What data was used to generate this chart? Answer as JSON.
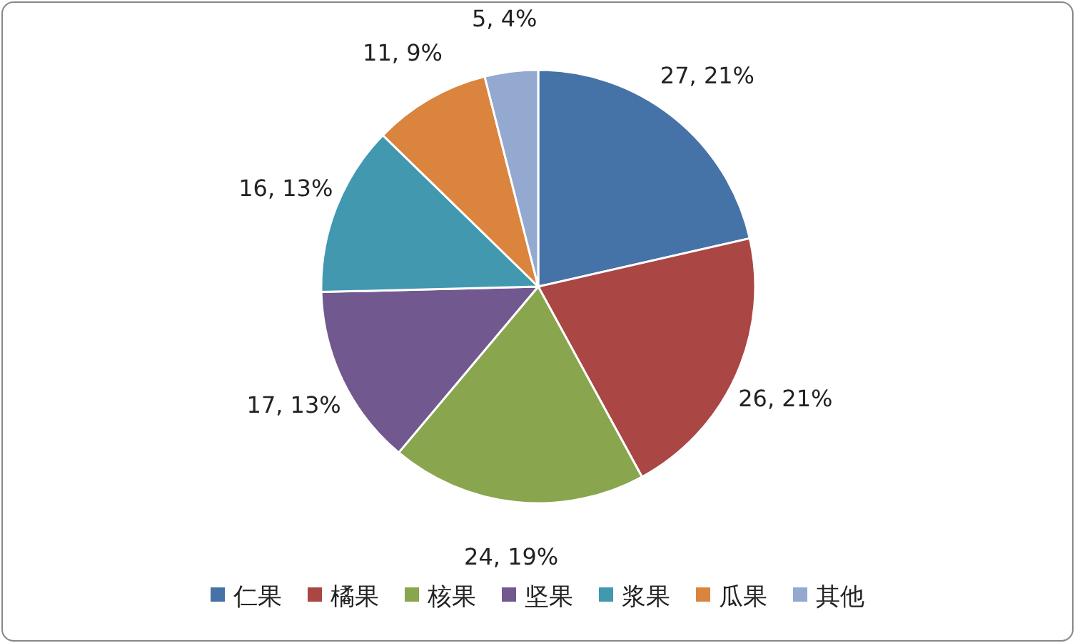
{
  "chart_data": {
    "type": "pie",
    "categories": [
      "仁果",
      "橘果",
      "核果",
      "坚果",
      "浆果",
      "瓜果",
      "其他"
    ],
    "values": [
      27,
      26,
      24,
      17,
      16,
      11,
      5
    ],
    "colors": [
      "#4572a7",
      "#aa4643",
      "#89a54e",
      "#71588f",
      "#4198af",
      "#db843d",
      "#93a9cf"
    ],
    "value_labels": [
      "27, 21%",
      "26, 21%",
      "24, 19%",
      "17, 13%",
      "16, 13%",
      "11, 9%",
      "5, 4%"
    ],
    "legend": "bottom"
  }
}
